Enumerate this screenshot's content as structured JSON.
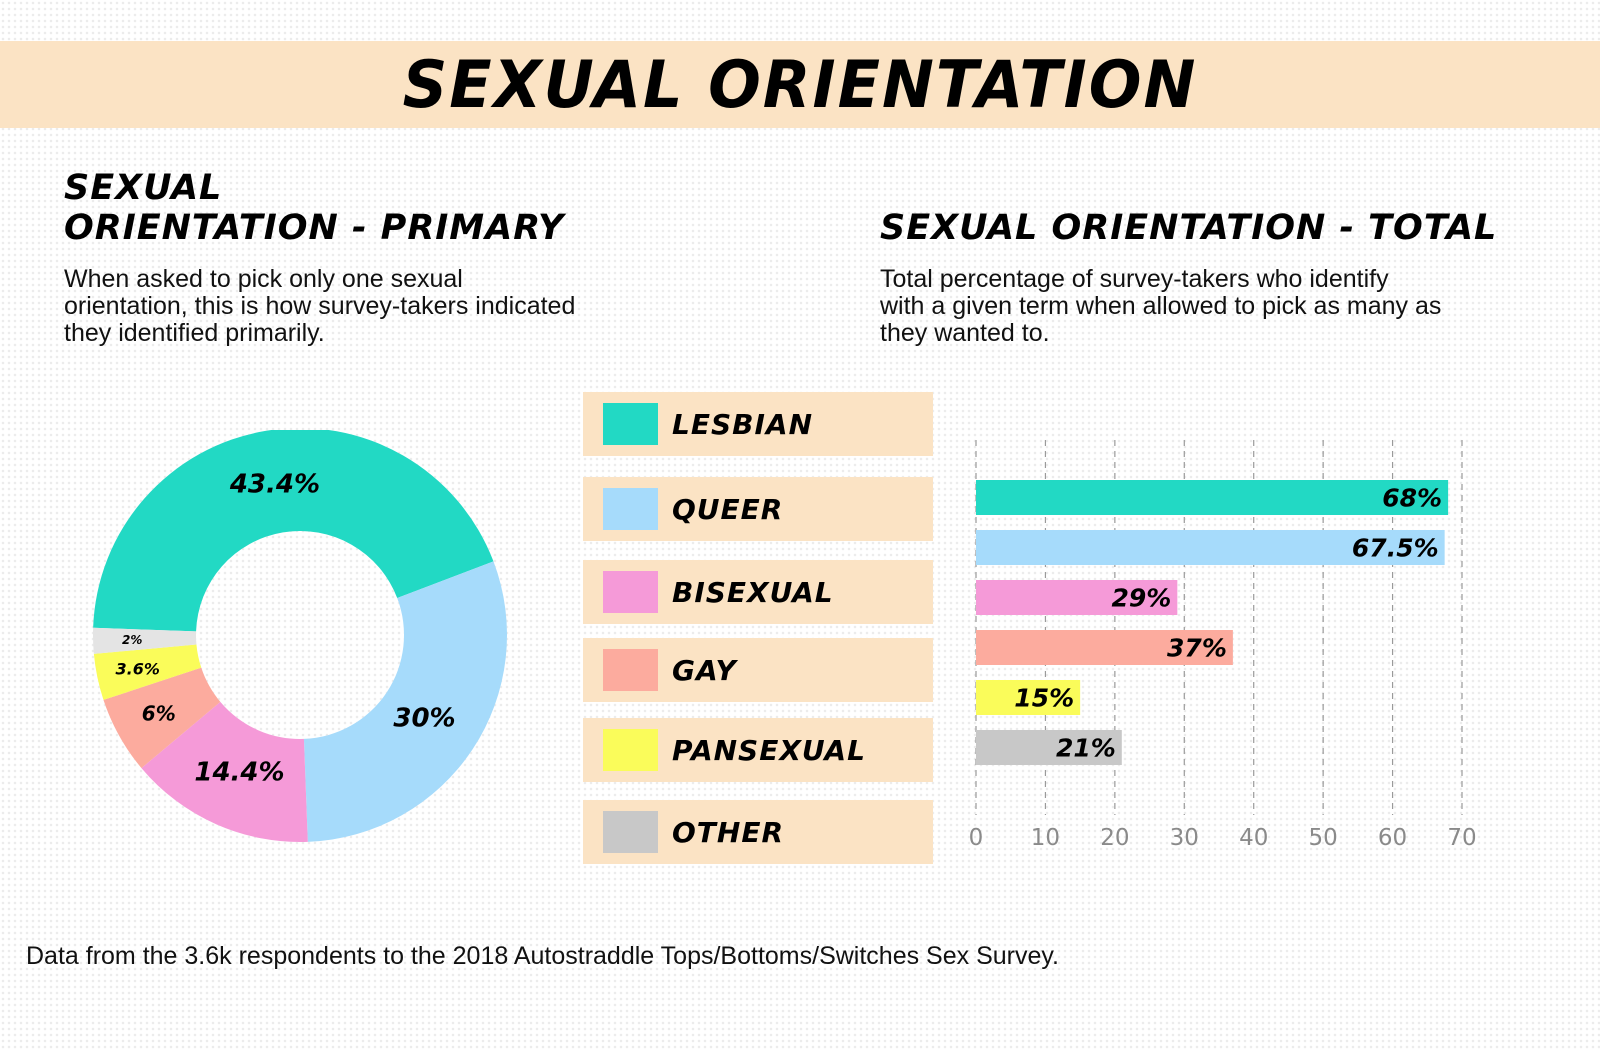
{
  "banner_title": "SEXUAL ORIENTATION",
  "primary": {
    "heading_line1": "SEXUAL",
    "heading_line2": "ORIENTATION - PRIMARY",
    "desc_lines": [
      "When asked to pick only one sexual",
      "orientation, this is how survey-takers indicated",
      "they identified primarily."
    ]
  },
  "total": {
    "heading": "SEXUAL ORIENTATION - TOTAL",
    "desc_lines": [
      "Total percentage of survey-takers who identify",
      "with a given term when allowed to pick as many as",
      "they wanted to."
    ]
  },
  "legend": [
    {
      "label": "LESBIAN",
      "color": "#22d9c4"
    },
    {
      "label": "QUEER",
      "color": "#a6dbfb"
    },
    {
      "label": "BISEXUAL",
      "color": "#f59ad8"
    },
    {
      "label": "GAY",
      "color": "#fcab9e"
    },
    {
      "label": "PANSEXUAL",
      "color": "#fafc5a"
    },
    {
      "label": "OTHER",
      "color": "#c8c8c8"
    }
  ],
  "footer": "Data from the 3.6k respondents to the 2018 Autostraddle Tops/Bottoms/Switches Sex Survey.",
  "chart_data": [
    {
      "type": "pie",
      "title": "SEXUAL ORIENTATION - PRIMARY",
      "categories": [
        "Lesbian",
        "Queer",
        "Bisexual",
        "Gay",
        "Pansexual",
        "Other"
      ],
      "values": [
        43.4,
        30,
        14.4,
        6,
        3.6,
        2
      ],
      "labels": [
        "43.4%",
        "30%",
        "14.4%",
        "6%",
        "3.6%",
        "2%"
      ],
      "colors": [
        "#22d9c4",
        "#a6dbfb",
        "#f59ad8",
        "#fcab9e",
        "#fafc5a",
        "#e4e4e4"
      ],
      "donut": true
    },
    {
      "type": "bar",
      "orientation": "horizontal",
      "title": "SEXUAL ORIENTATION - TOTAL",
      "categories": [
        "Lesbian",
        "Queer",
        "Bisexual",
        "Gay",
        "Pansexual",
        "Other"
      ],
      "values": [
        68,
        67.5,
        29,
        37,
        15,
        21
      ],
      "labels": [
        "68%",
        "67.5%",
        "29%",
        "37%",
        "15%",
        "21%"
      ],
      "colors": [
        "#22d9c4",
        "#a6dbfb",
        "#f59ad8",
        "#fcab9e",
        "#fafc5a",
        "#c8c8c8"
      ],
      "xlim": [
        0,
        70
      ],
      "xticks": [
        0,
        10,
        20,
        30,
        40,
        50,
        60,
        70
      ],
      "grid": true
    }
  ]
}
